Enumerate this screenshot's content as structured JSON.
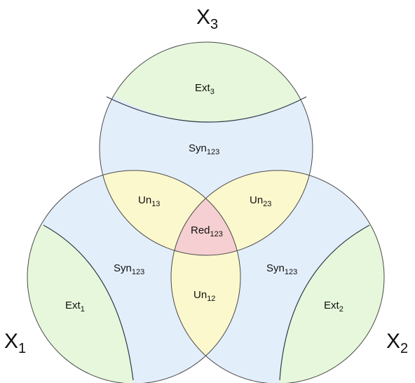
{
  "set_labels": {
    "x3": {
      "base": "X",
      "sub": "3"
    },
    "x1": {
      "base": "X",
      "sub": "1"
    },
    "x2": {
      "base": "X",
      "sub": "2"
    }
  },
  "regions": {
    "ext3": {
      "base": "Ext",
      "sub": "3"
    },
    "syn_top": {
      "base": "Syn",
      "sub": "123"
    },
    "un13": {
      "base": "Un",
      "sub": "13"
    },
    "un23": {
      "base": "Un",
      "sub": "23"
    },
    "red123": {
      "base": "Red",
      "sub": "123"
    },
    "syn_left": {
      "base": "Syn",
      "sub": "123"
    },
    "syn_right": {
      "base": "Syn",
      "sub": "123"
    },
    "un12": {
      "base": "Un",
      "sub": "12"
    },
    "ext1": {
      "base": "Ext",
      "sub": "1"
    },
    "ext2": {
      "base": "Ext",
      "sub": "2"
    }
  },
  "colors": {
    "ext": "#e6f7dc",
    "syn": "#e3eefb",
    "unique": "#fbf8cd",
    "redundant": "#f5cfd1",
    "outline": "#4a4a4a"
  }
}
